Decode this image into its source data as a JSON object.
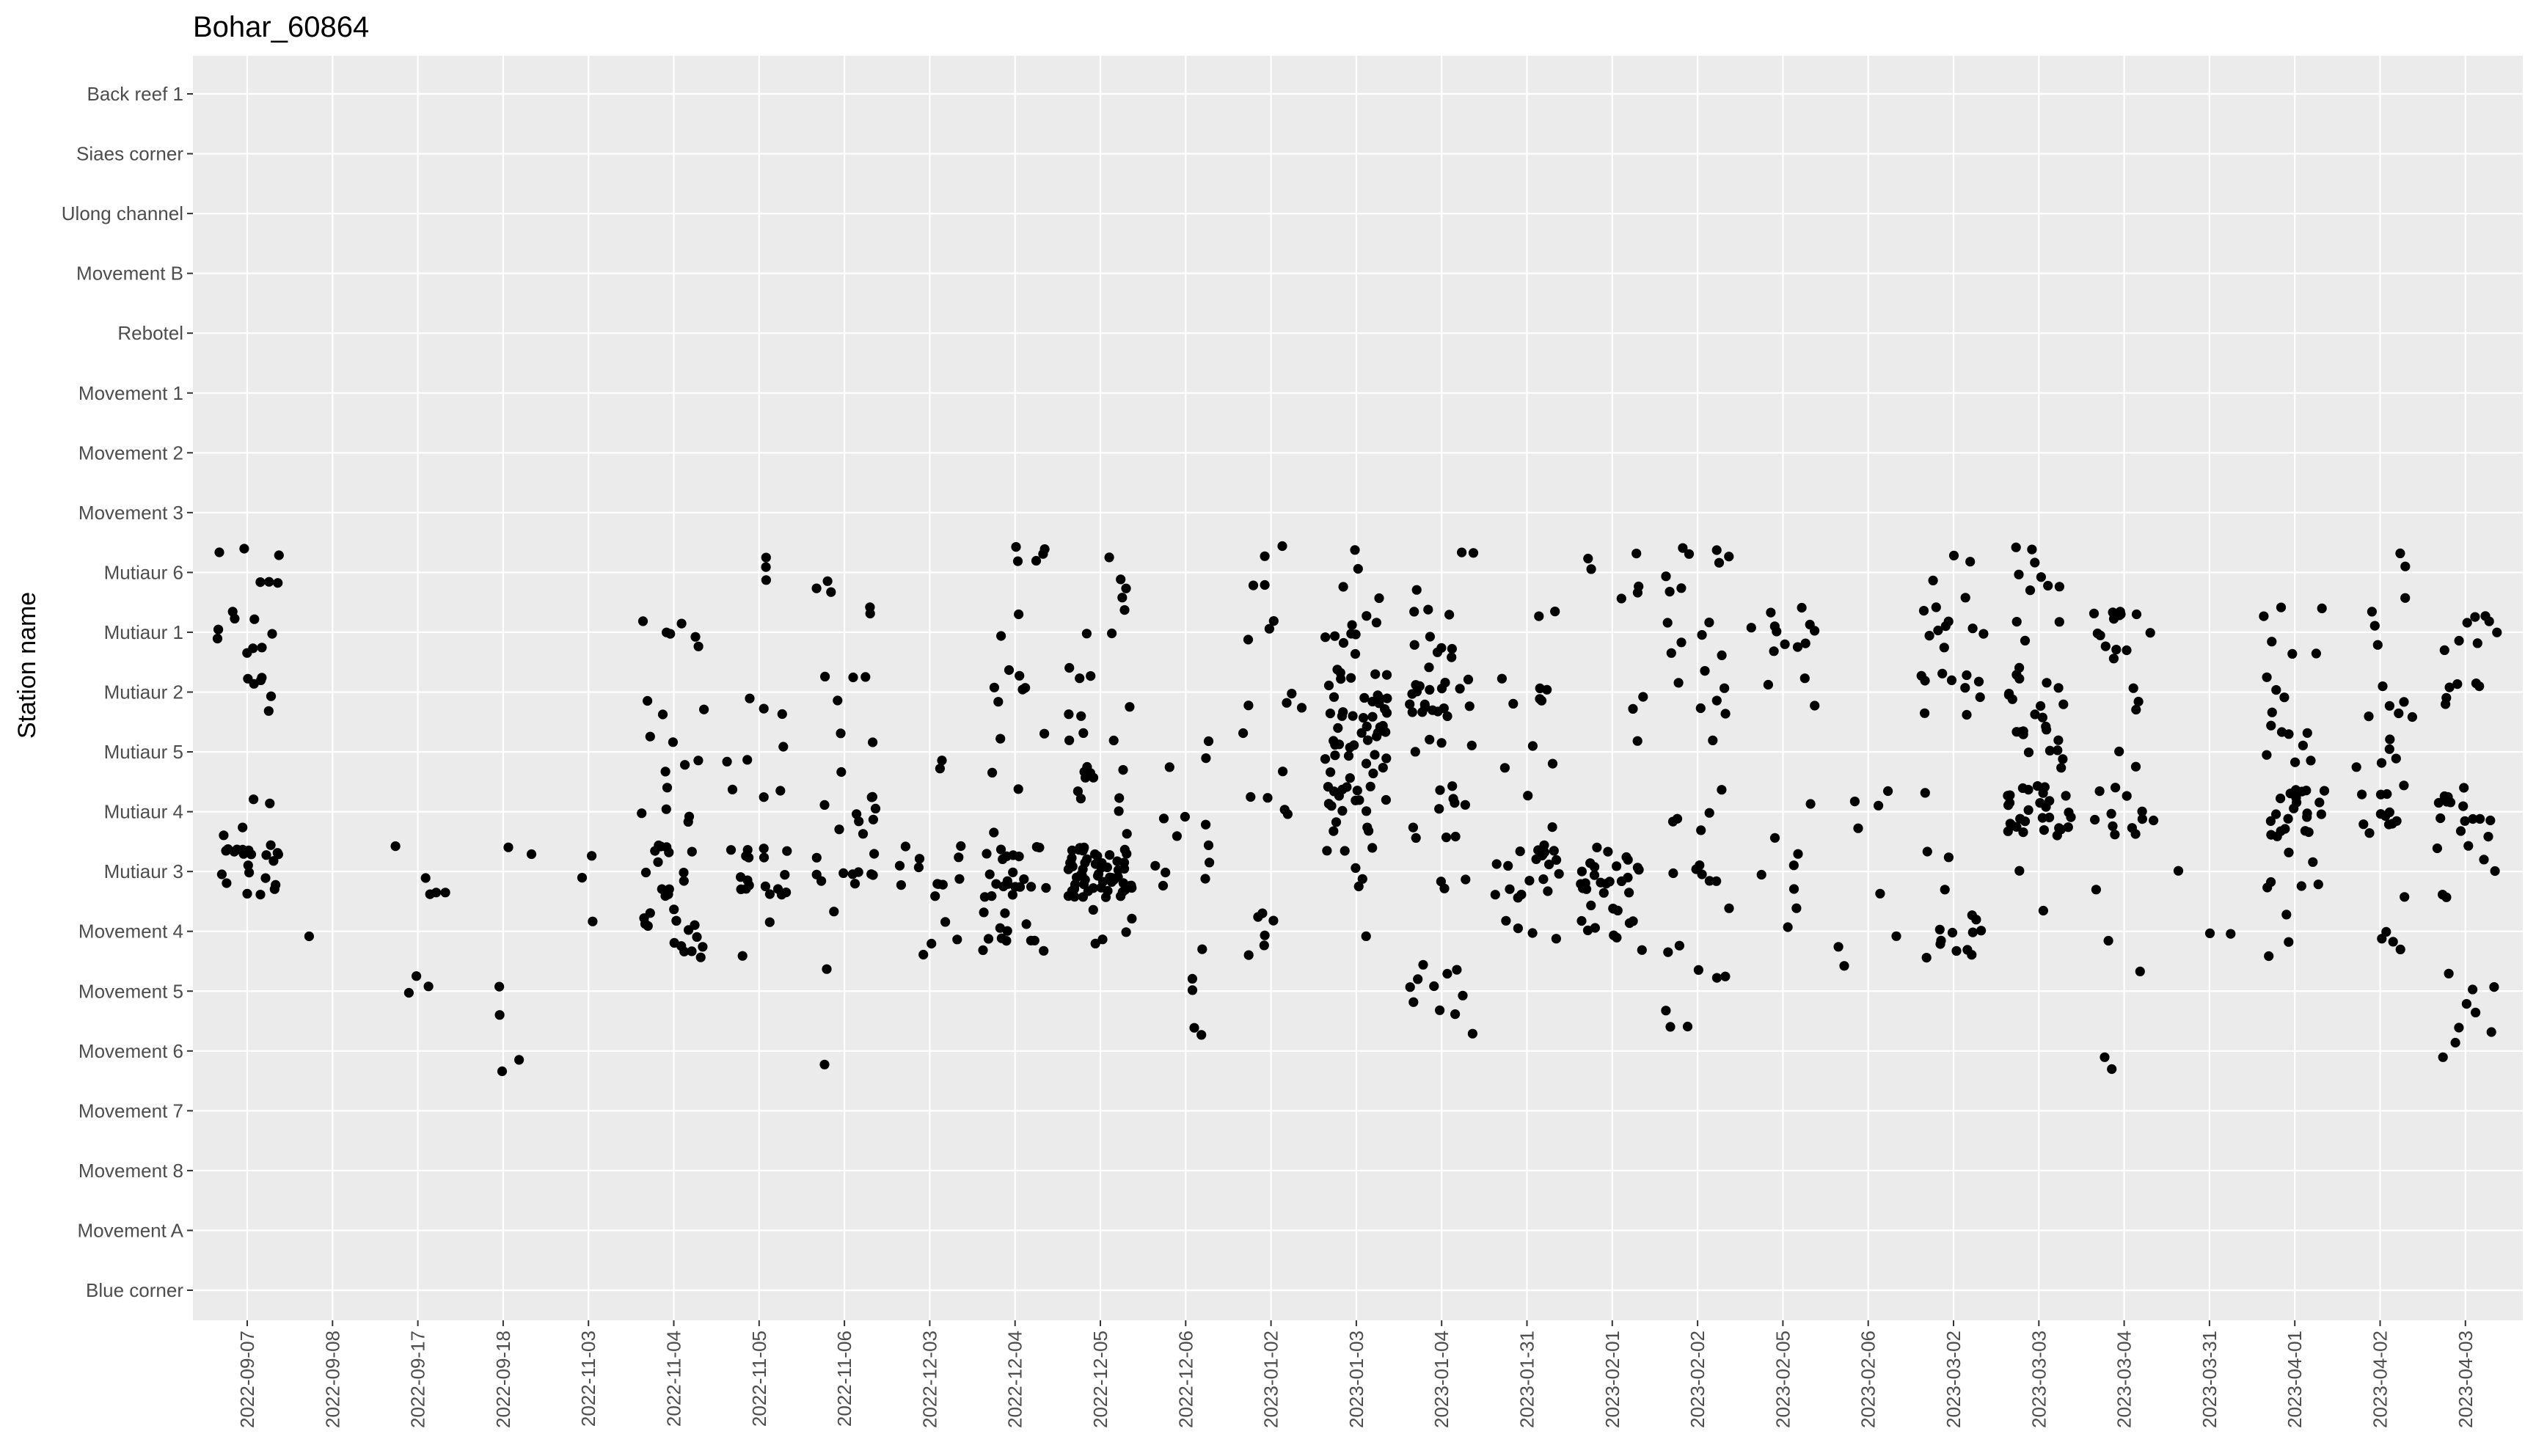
{
  "chart_data": {
    "type": "scatter",
    "title": "Bohar_60864",
    "xlabel": "",
    "ylabel": "Station name",
    "y_categories_top_to_bottom": [
      "Back reef 1",
      "Siaes corner",
      "Ulong channel",
      "Movement B",
      "Rebotel",
      "Movement 1",
      "Movement 2",
      "Movement 3",
      "Mutiaur 6",
      "Mutiaur 1",
      "Mutiaur 2",
      "Mutiaur 5",
      "Mutiaur 4",
      "Mutiaur 3",
      "Movement 4",
      "Movement 5",
      "Movement 6",
      "Movement 7",
      "Movement 8",
      "Movement A",
      "Blue corner"
    ],
    "x_categories": [
      "2022-09-07",
      "2022-09-08",
      "2022-09-17",
      "2022-09-18",
      "2022-11-03",
      "2022-11-04",
      "2022-11-05",
      "2022-11-06",
      "2022-12-03",
      "2022-12-04",
      "2022-12-05",
      "2022-12-06",
      "2023-01-02",
      "2023-01-03",
      "2023-01-04",
      "2023-01-31",
      "2023-02-01",
      "2023-02-02",
      "2023-02-05",
      "2023-02-06",
      "2023-03-02",
      "2023-03-03",
      "2023-03-04",
      "2023-03-31",
      "2023-04-01",
      "2023-04-02",
      "2023-04-03"
    ],
    "jitter": "points jittered within each date/station cell",
    "grid": true,
    "legend": "none",
    "point_color": "#000000",
    "panel_background": "#ebebeb",
    "grid_color": "#ffffff",
    "points": [
      {
        "x": "2022-09-07",
        "y": "Mutiaur 6",
        "n": 6
      },
      {
        "x": "2022-09-07",
        "y": "Mutiaur 1",
        "n": 9
      },
      {
        "x": "2022-09-07",
        "y": "Mutiaur 2",
        "n": 6
      },
      {
        "x": "2022-09-07",
        "y": "Mutiaur 4",
        "n": 4
      },
      {
        "x": "2022-09-07",
        "y": "Mutiaur 3",
        "n": 22
      },
      {
        "x": "2022-09-17",
        "y": "Mutiaur 3",
        "n": 5
      },
      {
        "x": "2022-09-17",
        "y": "Movement 5",
        "n": 3
      },
      {
        "x": "2022-09-08",
        "y": "Movement 4",
        "n": 1
      },
      {
        "x": "2022-09-18",
        "y": "Mutiaur 3",
        "n": 2
      },
      {
        "x": "2022-09-18",
        "y": "Movement 5",
        "n": 2
      },
      {
        "x": "2022-09-18",
        "y": "Movement 6",
        "n": 2
      },
      {
        "x": "2022-11-03",
        "y": "Mutiaur 3",
        "n": 2
      },
      {
        "x": "2022-11-03",
        "y": "Movement 4",
        "n": 1
      },
      {
        "x": "2022-11-04",
        "y": "Mutiaur 1",
        "n": 6
      },
      {
        "x": "2022-11-04",
        "y": "Mutiaur 2",
        "n": 3
      },
      {
        "x": "2022-11-04",
        "y": "Mutiaur 5",
        "n": 5
      },
      {
        "x": "2022-11-04",
        "y": "Mutiaur 4",
        "n": 5
      },
      {
        "x": "2022-11-04",
        "y": "Mutiaur 3",
        "n": 14
      },
      {
        "x": "2022-11-04",
        "y": "Movement 4",
        "n": 16
      },
      {
        "x": "2022-11-05",
        "y": "Mutiaur 6",
        "n": 3
      },
      {
        "x": "2022-11-05",
        "y": "Mutiaur 2",
        "n": 3
      },
      {
        "x": "2022-11-05",
        "y": "Mutiaur 5",
        "n": 3
      },
      {
        "x": "2022-11-05",
        "y": "Mutiaur 4",
        "n": 3
      },
      {
        "x": "2022-11-05",
        "y": "Mutiaur 3",
        "n": 18
      },
      {
        "x": "2022-11-05",
        "y": "Movement 4",
        "n": 2
      },
      {
        "x": "2022-11-06",
        "y": "Mutiaur 6",
        "n": 3
      },
      {
        "x": "2022-11-06",
        "y": "Mutiaur 1",
        "n": 2
      },
      {
        "x": "2022-11-06",
        "y": "Mutiaur 2",
        "n": 4
      },
      {
        "x": "2022-11-06",
        "y": "Mutiaur 5",
        "n": 3
      },
      {
        "x": "2022-11-06",
        "y": "Mutiaur 4",
        "n": 9
      },
      {
        "x": "2022-11-06",
        "y": "Mutiaur 3",
        "n": 10
      },
      {
        "x": "2022-11-06",
        "y": "Movement 4",
        "n": 1
      },
      {
        "x": "2022-11-06",
        "y": "Movement 5",
        "n": 1
      },
      {
        "x": "2022-11-06",
        "y": "Movement 6",
        "n": 1
      },
      {
        "x": "2022-12-03",
        "y": "Mutiaur 5",
        "n": 2
      },
      {
        "x": "2022-12-03",
        "y": "Mutiaur 3",
        "n": 12
      },
      {
        "x": "2022-12-03",
        "y": "Movement 4",
        "n": 4
      },
      {
        "x": "2022-12-04",
        "y": "Mutiaur 6",
        "n": 5
      },
      {
        "x": "2022-12-04",
        "y": "Mutiaur 1",
        "n": 2
      },
      {
        "x": "2022-12-04",
        "y": "Mutiaur 2",
        "n": 6
      },
      {
        "x": "2022-12-04",
        "y": "Mutiaur 5",
        "n": 3
      },
      {
        "x": "2022-12-04",
        "y": "Mutiaur 4",
        "n": 2
      },
      {
        "x": "2022-12-04",
        "y": "Mutiaur 3",
        "n": 22
      },
      {
        "x": "2022-12-04",
        "y": "Movement 4",
        "n": 12
      },
      {
        "x": "2022-12-05",
        "y": "Mutiaur 6",
        "n": 4
      },
      {
        "x": "2022-12-05",
        "y": "Mutiaur 1",
        "n": 3
      },
      {
        "x": "2022-12-05",
        "y": "Mutiaur 2",
        "n": 6
      },
      {
        "x": "2022-12-05",
        "y": "Mutiaur 5",
        "n": 9
      },
      {
        "x": "2022-12-05",
        "y": "Mutiaur 4",
        "n": 5
      },
      {
        "x": "2022-12-05",
        "y": "Mutiaur 3",
        "n": 60
      },
      {
        "x": "2022-12-05",
        "y": "Movement 4",
        "n": 5
      },
      {
        "x": "2022-12-06",
        "y": "Mutiaur 5",
        "n": 3
      },
      {
        "x": "2022-12-06",
        "y": "Mutiaur 4",
        "n": 4
      },
      {
        "x": "2022-12-06",
        "y": "Mutiaur 3",
        "n": 6
      },
      {
        "x": "2022-12-06",
        "y": "Movement 4",
        "n": 1
      },
      {
        "x": "2022-12-06",
        "y": "Movement 5",
        "n": 2
      },
      {
        "x": "2022-12-06",
        "y": "Movement 6",
        "n": 2
      },
      {
        "x": "2023-01-02",
        "y": "Mutiaur 6",
        "n": 4
      },
      {
        "x": "2023-01-02",
        "y": "Mutiaur 1",
        "n": 3
      },
      {
        "x": "2023-01-02",
        "y": "Mutiaur 2",
        "n": 4
      },
      {
        "x": "2023-01-02",
        "y": "Mutiaur 5",
        "n": 2
      },
      {
        "x": "2023-01-02",
        "y": "Mutiaur 4",
        "n": 4
      },
      {
        "x": "2023-01-02",
        "y": "Movement 4",
        "n": 6
      },
      {
        "x": "2023-01-03",
        "y": "Mutiaur 6",
        "n": 4
      },
      {
        "x": "2023-01-03",
        "y": "Mutiaur 1",
        "n": 9
      },
      {
        "x": "2023-01-03",
        "y": "Mutiaur 2",
        "n": 22
      },
      {
        "x": "2023-01-03",
        "y": "Mutiaur 5",
        "n": 24
      },
      {
        "x": "2023-01-03",
        "y": "Mutiaur 4",
        "n": 18
      },
      {
        "x": "2023-01-03",
        "y": "Mutiaur 3",
        "n": 6
      },
      {
        "x": "2023-01-03",
        "y": "Movement 4",
        "n": 1
      },
      {
        "x": "2023-01-04",
        "y": "Mutiaur 6",
        "n": 3
      },
      {
        "x": "2023-01-04",
        "y": "Mutiaur 1",
        "n": 9
      },
      {
        "x": "2023-01-04",
        "y": "Mutiaur 2",
        "n": 20
      },
      {
        "x": "2023-01-04",
        "y": "Mutiaur 5",
        "n": 4
      },
      {
        "x": "2023-01-04",
        "y": "Mutiaur 4",
        "n": 10
      },
      {
        "x": "2023-01-04",
        "y": "Mutiaur 3",
        "n": 3
      },
      {
        "x": "2023-01-04",
        "y": "Movement 5",
        "n": 10
      },
      {
        "x": "2023-01-04",
        "y": "Movement 6",
        "n": 1
      },
      {
        "x": "2023-01-31",
        "y": "Mutiaur 1",
        "n": 2
      },
      {
        "x": "2023-01-31",
        "y": "Mutiaur 2",
        "n": 6
      },
      {
        "x": "2023-01-31",
        "y": "Mutiaur 5",
        "n": 3
      },
      {
        "x": "2023-01-31",
        "y": "Mutiaur 4",
        "n": 2
      },
      {
        "x": "2023-01-31",
        "y": "Mutiaur 3",
        "n": 20
      },
      {
        "x": "2023-01-31",
        "y": "Movement 4",
        "n": 4
      },
      {
        "x": "2023-02-01",
        "y": "Mutiaur 6",
        "n": 6
      },
      {
        "x": "2023-02-01",
        "y": "Mutiaur 2",
        "n": 2
      },
      {
        "x": "2023-02-01",
        "y": "Mutiaur 5",
        "n": 1
      },
      {
        "x": "2023-02-01",
        "y": "Mutiaur 3",
        "n": 22
      },
      {
        "x": "2023-02-01",
        "y": "Movement 4",
        "n": 12
      },
      {
        "x": "2023-02-02",
        "y": "Mutiaur 6",
        "n": 8
      },
      {
        "x": "2023-02-02",
        "y": "Mutiaur 1",
        "n": 6
      },
      {
        "x": "2023-02-02",
        "y": "Mutiaur 2",
        "n": 6
      },
      {
        "x": "2023-02-02",
        "y": "Mutiaur 5",
        "n": 1
      },
      {
        "x": "2023-02-02",
        "y": "Mutiaur 4",
        "n": 5
      },
      {
        "x": "2023-02-02",
        "y": "Mutiaur 3",
        "n": 6
      },
      {
        "x": "2023-02-02",
        "y": "Movement 4",
        "n": 3
      },
      {
        "x": "2023-02-02",
        "y": "Movement 5",
        "n": 4
      },
      {
        "x": "2023-02-02",
        "y": "Movement 6",
        "n": 2
      },
      {
        "x": "2023-02-05",
        "y": "Mutiaur 1",
        "n": 11
      },
      {
        "x": "2023-02-05",
        "y": "Mutiaur 2",
        "n": 3
      },
      {
        "x": "2023-02-05",
        "y": "Mutiaur 4",
        "n": 2
      },
      {
        "x": "2023-02-05",
        "y": "Mutiaur 3",
        "n": 4
      },
      {
        "x": "2023-02-05",
        "y": "Movement 4",
        "n": 2
      },
      {
        "x": "2023-02-06",
        "y": "Mutiaur 4",
        "n": 4
      },
      {
        "x": "2023-02-06",
        "y": "Mutiaur 3",
        "n": 1
      },
      {
        "x": "2023-02-06",
        "y": "Movement 4",
        "n": 2
      },
      {
        "x": "2023-02-06",
        "y": "Movement 5",
        "n": 1
      },
      {
        "x": "2023-03-02",
        "y": "Mutiaur 6",
        "n": 4
      },
      {
        "x": "2023-03-02",
        "y": "Mutiaur 1",
        "n": 9
      },
      {
        "x": "2023-03-02",
        "y": "Mutiaur 2",
        "n": 10
      },
      {
        "x": "2023-03-02",
        "y": "Mutiaur 4",
        "n": 1
      },
      {
        "x": "2023-03-02",
        "y": "Mutiaur 3",
        "n": 3
      },
      {
        "x": "2023-03-02",
        "y": "Movement 4",
        "n": 12
      },
      {
        "x": "2023-03-03",
        "y": "Mutiaur 6",
        "n": 8
      },
      {
        "x": "2023-03-03",
        "y": "Mutiaur 1",
        "n": 3
      },
      {
        "x": "2023-03-03",
        "y": "Mutiaur 2",
        "n": 12
      },
      {
        "x": "2023-03-03",
        "y": "Mutiaur 5",
        "n": 12
      },
      {
        "x": "2023-03-03",
        "y": "Mutiaur 4",
        "n": 30
      },
      {
        "x": "2023-03-03",
        "y": "Mutiaur 3",
        "n": 1
      },
      {
        "x": "2023-03-03",
        "y": "Movement 4",
        "n": 1
      },
      {
        "x": "2023-03-04",
        "y": "Mutiaur 1",
        "n": 14
      },
      {
        "x": "2023-03-04",
        "y": "Mutiaur 2",
        "n": 3
      },
      {
        "x": "2023-03-04",
        "y": "Mutiaur 5",
        "n": 2
      },
      {
        "x": "2023-03-04",
        "y": "Mutiaur 4",
        "n": 12
      },
      {
        "x": "2023-03-04",
        "y": "Mutiaur 3",
        "n": 1
      },
      {
        "x": "2023-03-04",
        "y": "Movement 4",
        "n": 1
      },
      {
        "x": "2023-03-04",
        "y": "Movement 5",
        "n": 1
      },
      {
        "x": "2023-03-04",
        "y": "Movement 6",
        "n": 2
      },
      {
        "x": "2023-03-31",
        "y": "Mutiaur 3",
        "n": 1
      },
      {
        "x": "2023-03-31",
        "y": "Movement 4",
        "n": 2
      },
      {
        "x": "2023-04-01",
        "y": "Mutiaur 1",
        "n": 6
      },
      {
        "x": "2023-04-01",
        "y": "Mutiaur 2",
        "n": 4
      },
      {
        "x": "2023-04-01",
        "y": "Mutiaur 5",
        "n": 8
      },
      {
        "x": "2023-04-01",
        "y": "Mutiaur 4",
        "n": 22
      },
      {
        "x": "2023-04-01",
        "y": "Mutiaur 3",
        "n": 6
      },
      {
        "x": "2023-04-01",
        "y": "Movement 4",
        "n": 3
      },
      {
        "x": "2023-04-02",
        "y": "Mutiaur 6",
        "n": 3
      },
      {
        "x": "2023-04-02",
        "y": "Mutiaur 1",
        "n": 3
      },
      {
        "x": "2023-04-02",
        "y": "Mutiaur 2",
        "n": 6
      },
      {
        "x": "2023-04-02",
        "y": "Mutiaur 5",
        "n": 5
      },
      {
        "x": "2023-04-02",
        "y": "Mutiaur 4",
        "n": 12
      },
      {
        "x": "2023-04-02",
        "y": "Mutiaur 3",
        "n": 1
      },
      {
        "x": "2023-04-02",
        "y": "Movement 4",
        "n": 4
      },
      {
        "x": "2023-04-03",
        "y": "Mutiaur 1",
        "n": 8
      },
      {
        "x": "2023-04-03",
        "y": "Mutiaur 2",
        "n": 6
      },
      {
        "x": "2023-04-03",
        "y": "Mutiaur 4",
        "n": 14
      },
      {
        "x": "2023-04-03",
        "y": "Mutiaur 3",
        "n": 6
      },
      {
        "x": "2023-04-03",
        "y": "Movement 5",
        "n": 5
      },
      {
        "x": "2023-04-03",
        "y": "Movement 6",
        "n": 4
      }
    ]
  }
}
